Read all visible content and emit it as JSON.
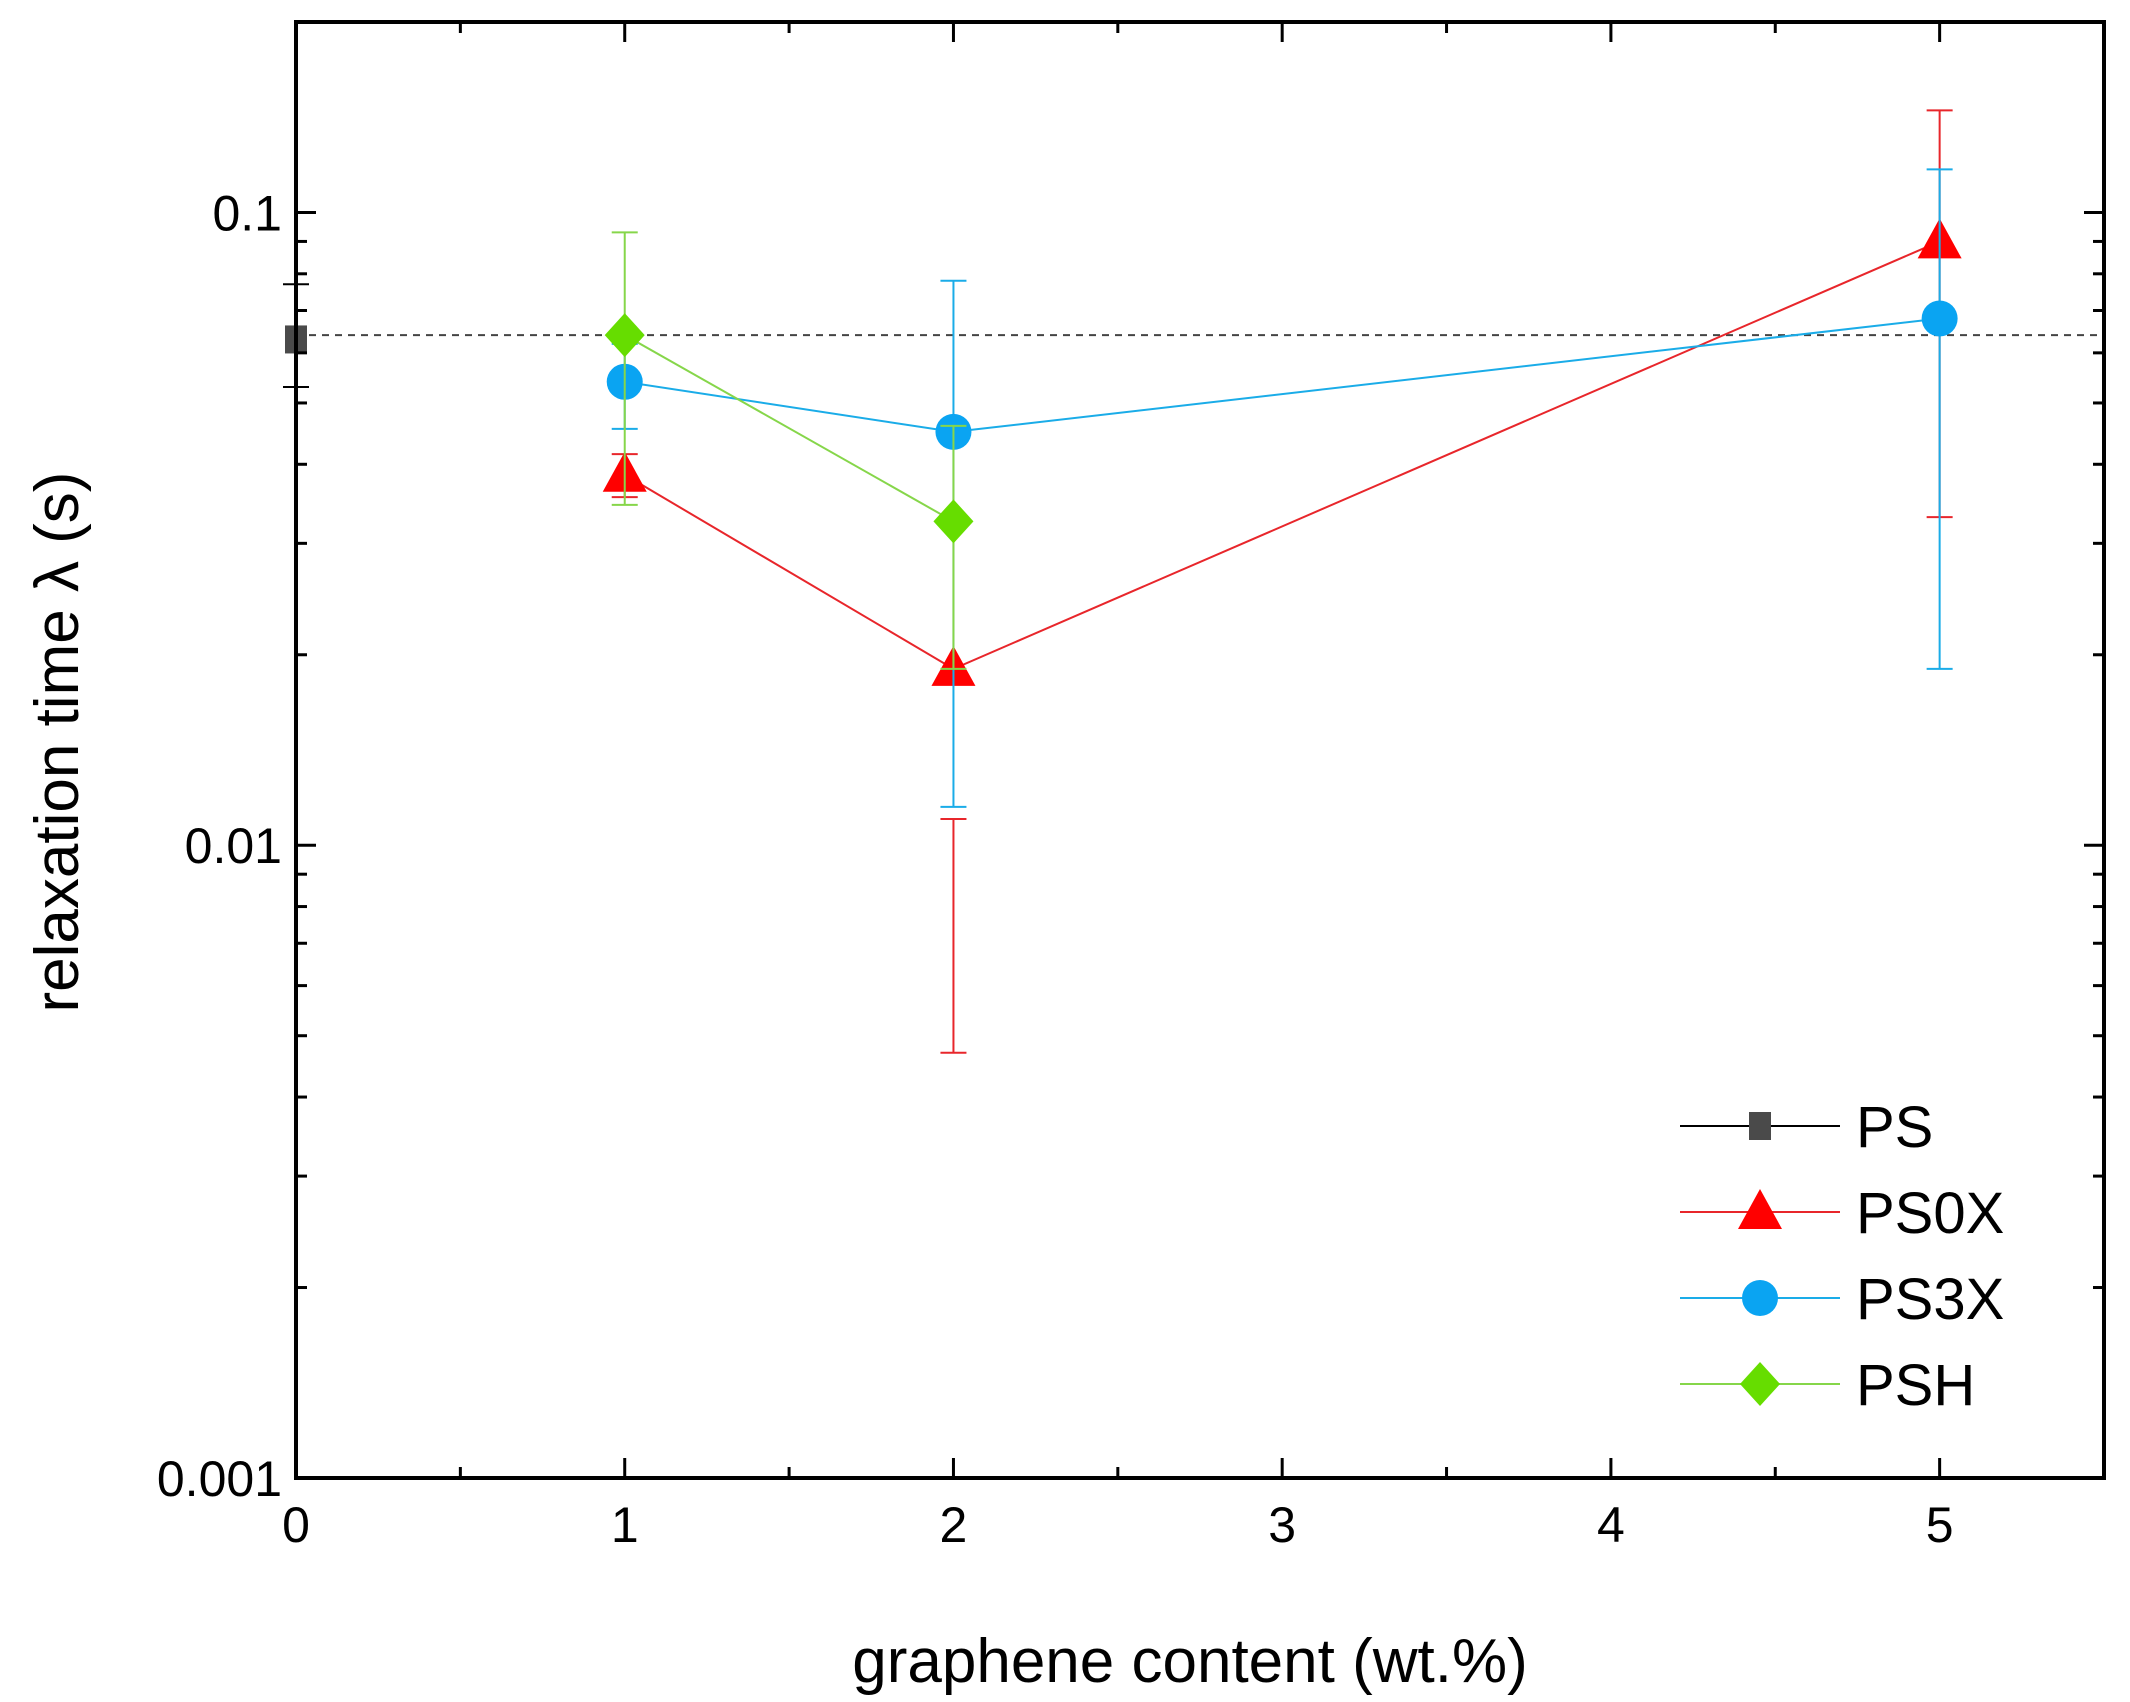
{
  "chart_data": {
    "type": "scatter",
    "xlabel": "graphene content (wt.%)",
    "ylabel": "relaxation time λ (s)",
    "xlim": [
      0,
      5.5
    ],
    "ylim": [
      0.001,
      0.2
    ],
    "yscale": "log",
    "x_ticks": [
      0,
      1,
      2,
      3,
      4,
      5
    ],
    "x_tick_labels": [
      "0",
      "1",
      "2",
      "3",
      "4",
      "5"
    ],
    "y_ticks": [
      0.001,
      0.01,
      0.1
    ],
    "y_tick_labels": [
      "0.001",
      "0.01",
      "0.1"
    ],
    "reference_line": {
      "y": 0.064,
      "style": "dashed",
      "color": "#444444"
    },
    "legend_position": "bottom-right",
    "series": [
      {
        "name": "PS",
        "color": "#000000",
        "marker": "square",
        "marker_color": "#4a4a4a",
        "points": [
          {
            "x": 0,
            "y": 0.063,
            "err_low": 0.053,
            "err_high": 0.077
          }
        ]
      },
      {
        "name": "PS0X",
        "color": "#e8262b",
        "marker": "triangle",
        "marker_color": "#ff0000",
        "points": [
          {
            "x": 1,
            "y": 0.0385,
            "err_low": 0.0355,
            "err_high": 0.0415
          },
          {
            "x": 2,
            "y": 0.019,
            "err_low": 0.0047,
            "err_high": 0.011
          },
          {
            "x": 5,
            "y": 0.09,
            "err_low": 0.033,
            "err_high": 0.145
          }
        ]
      },
      {
        "name": "PS3X",
        "color": "#1aace8",
        "marker": "circle",
        "marker_color": "#0aa4f2",
        "points": [
          {
            "x": 1,
            "y": 0.054,
            "err_low": 0.0455,
            "err_high": 0.062
          },
          {
            "x": 2,
            "y": 0.045,
            "err_low": 0.0115,
            "err_high": 0.078
          },
          {
            "x": 5,
            "y": 0.068,
            "err_low": 0.019,
            "err_high": 0.117
          }
        ]
      },
      {
        "name": "PSH",
        "color": "#86d64a",
        "marker": "diamond",
        "marker_color": "#66dd00",
        "points": [
          {
            "x": 1,
            "y": 0.064,
            "err_low": 0.0345,
            "err_high": 0.093
          },
          {
            "x": 2,
            "y": 0.0325,
            "err_low": 0.019,
            "err_high": 0.046
          }
        ]
      }
    ]
  }
}
